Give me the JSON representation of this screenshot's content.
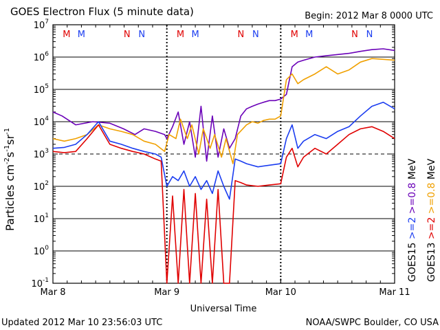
{
  "chart_data": {
    "type": "line",
    "title": "GOES Electron Flux (5 minute data)",
    "begin_label": "Begin: 2012 Mar 8 0000 UTC",
    "xlabel": "Universal Time",
    "ylabel_main": "Particles cm",
    "ylabel_sup1": "-2",
    "ylabel_mid1": "s",
    "ylabel_sup2": "-1",
    "ylabel_mid2": "sr",
    "ylabel_sup3": "-1",
    "x_ticks": [
      "Mar 8",
      "Mar 9",
      "Mar 10",
      "Mar 11"
    ],
    "x_tick_days": [
      0,
      1,
      2,
      3
    ],
    "xlim_days": [
      0,
      3
    ],
    "y_scale": "log",
    "ylim": [
      0.1,
      10000000
    ],
    "y_ticks": [
      {
        "base": "10",
        "exp": "7"
      },
      {
        "base": "10",
        "exp": "6"
      },
      {
        "base": "10",
        "exp": "5"
      },
      {
        "base": "10",
        "exp": "4"
      },
      {
        "base": "10",
        "exp": "3"
      },
      {
        "base": "10",
        "exp": "2"
      },
      {
        "base": "10",
        "exp": "1"
      },
      {
        "base": "10",
        "exp": "0"
      },
      {
        "base": "10",
        "exp": "-1"
      }
    ],
    "y_tick_values": [
      10000000,
      1000000,
      100000,
      10000,
      1000,
      100,
      10,
      1,
      0.1
    ],
    "gridlines": [
      1000000,
      100000,
      10000,
      100,
      10,
      1
    ],
    "dashed_line": 1000,
    "mn_markers": [
      {
        "label": "M",
        "day": 0.12,
        "color": "#e00000"
      },
      {
        "label": "M",
        "day": 0.25,
        "color": "#1a3cf0"
      },
      {
        "label": "N",
        "day": 0.65,
        "color": "#e00000"
      },
      {
        "label": "N",
        "day": 0.78,
        "color": "#1a3cf0"
      },
      {
        "label": "M",
        "day": 1.12,
        "color": "#e00000"
      },
      {
        "label": "M",
        "day": 1.25,
        "color": "#1a3cf0"
      },
      {
        "label": "N",
        "day": 1.65,
        "color": "#e00000"
      },
      {
        "label": "N",
        "day": 1.78,
        "color": "#1a3cf0"
      },
      {
        "label": "M",
        "day": 2.12,
        "color": "#e00000"
      },
      {
        "label": "M",
        "day": 2.25,
        "color": "#1a3cf0"
      },
      {
        "label": "N",
        "day": 2.65,
        "color": "#e00000"
      },
      {
        "label": "N",
        "day": 2.78,
        "color": "#1a3cf0"
      }
    ],
    "legend": {
      "col1": [
        {
          "text": "GOES15",
          "color": "#000000"
        },
        {
          "text": ">=2",
          "color": "#1a3cf0"
        },
        {
          "text": ">=0.8",
          "color": "#6a00b8"
        },
        {
          "text": "MeV",
          "color": "#000000"
        }
      ],
      "col2": [
        {
          "text": "GOES13",
          "color": "#000000"
        },
        {
          "text": ">=2",
          "color": "#e00000"
        },
        {
          "text": ">=0.8",
          "color": "#f0a000"
        },
        {
          "text": "MeV",
          "color": "#000000"
        }
      ]
    },
    "series": [
      {
        "name": "GOES15 >=0.8 MeV",
        "color": "#6a00b8",
        "x": [
          0,
          0.08,
          0.2,
          0.35,
          0.5,
          0.62,
          0.72,
          0.8,
          0.9,
          0.98,
          1.0,
          1.05,
          1.1,
          1.15,
          1.2,
          1.25,
          1.3,
          1.35,
          1.4,
          1.45,
          1.5,
          1.55,
          1.6,
          1.65,
          1.7,
          1.75,
          1.8,
          1.85,
          1.9,
          1.95,
          2.0,
          2.05,
          2.1,
          2.15,
          2.2,
          2.3,
          2.4,
          2.5,
          2.6,
          2.7,
          2.8,
          2.9,
          3.0
        ],
        "y": [
          20000,
          15000,
          8000,
          10000,
          9000,
          6000,
          4000,
          6000,
          5000,
          4000,
          3000,
          7000,
          20000,
          2000,
          10000,
          800,
          30000,
          600,
          15000,
          800,
          6000,
          1500,
          3000,
          15000,
          25000,
          30000,
          35000,
          40000,
          45000,
          45000,
          50000,
          70000,
          500000,
          700000,
          800000,
          1000000,
          1100000,
          1200000,
          1300000,
          1500000,
          1700000,
          1800000,
          1600000
        ]
      },
      {
        "name": "GOES13 >=0.8 MeV",
        "color": "#f0a000",
        "x": [
          0,
          0.1,
          0.2,
          0.3,
          0.4,
          0.5,
          0.6,
          0.7,
          0.8,
          0.9,
          0.98,
          1.02,
          1.08,
          1.12,
          1.18,
          1.22,
          1.28,
          1.32,
          1.38,
          1.42,
          1.48,
          1.52,
          1.58,
          1.62,
          1.7,
          1.75,
          1.8,
          1.85,
          1.9,
          1.95,
          2.0,
          2.05,
          2.1,
          2.15,
          2.2,
          2.3,
          2.4,
          2.5,
          2.6,
          2.7,
          2.8,
          2.9,
          3.0
        ],
        "y": [
          3000,
          2500,
          3000,
          4000,
          8000,
          6000,
          5000,
          4000,
          2500,
          2000,
          1200,
          4000,
          3000,
          12000,
          3000,
          8000,
          1000,
          6000,
          1500,
          4000,
          800,
          3000,
          500,
          4000,
          8000,
          10000,
          9000,
          11000,
          12000,
          12000,
          15000,
          200000,
          300000,
          150000,
          200000,
          300000,
          500000,
          300000,
          400000,
          700000,
          900000,
          850000,
          800000
        ]
      },
      {
        "name": "GOES15 >=2 MeV",
        "color": "#1a3cf0",
        "x": [
          0,
          0.1,
          0.2,
          0.3,
          0.4,
          0.5,
          0.6,
          0.7,
          0.8,
          0.9,
          0.95,
          1.0,
          1.05,
          1.1,
          1.15,
          1.2,
          1.25,
          1.3,
          1.35,
          1.4,
          1.45,
          1.5,
          1.55,
          1.6,
          1.65,
          1.7,
          1.8,
          1.9,
          2.0,
          2.05,
          2.1,
          2.15,
          2.2,
          2.3,
          2.4,
          2.5,
          2.6,
          2.7,
          2.8,
          2.9,
          3.0
        ],
        "y": [
          1500,
          1600,
          2000,
          4000,
          10000,
          2500,
          2000,
          1500,
          1200,
          1000,
          800,
          100,
          200,
          150,
          300,
          100,
          200,
          80,
          150,
          60,
          300,
          100,
          40,
          700,
          600,
          500,
          400,
          450,
          500,
          3000,
          8000,
          1500,
          2500,
          4000,
          3000,
          5000,
          7000,
          15000,
          30000,
          40000,
          25000
        ]
      },
      {
        "name": "GOES13 >=2 MeV",
        "color": "#e00000",
        "x": [
          0,
          0.1,
          0.2,
          0.3,
          0.4,
          0.5,
          0.6,
          0.7,
          0.8,
          0.9,
          0.95,
          1.0,
          1.05,
          1.1,
          1.15,
          1.2,
          1.25,
          1.3,
          1.35,
          1.4,
          1.45,
          1.5,
          1.55,
          1.6,
          1.65,
          1.7,
          1.8,
          1.9,
          2.0,
          2.05,
          2.1,
          2.15,
          2.2,
          2.3,
          2.4,
          2.5,
          2.6,
          2.7,
          2.8,
          2.9,
          3.0
        ],
        "y": [
          1200,
          1100,
          1200,
          3000,
          8000,
          2000,
          1500,
          1200,
          1000,
          700,
          600,
          0.1,
          50,
          0.1,
          80,
          0.1,
          60,
          0.1,
          40,
          0.1,
          80,
          0.1,
          0.1,
          150,
          130,
          110,
          100,
          110,
          120,
          800,
          1500,
          400,
          800,
          1500,
          1000,
          2000,
          4000,
          6000,
          7000,
          5000,
          3000
        ]
      }
    ]
  },
  "footer": {
    "updated": "Updated 2012 Mar 10 23:56:03 UTC",
    "source": "NOAA/SWPC Boulder, CO USA"
  }
}
